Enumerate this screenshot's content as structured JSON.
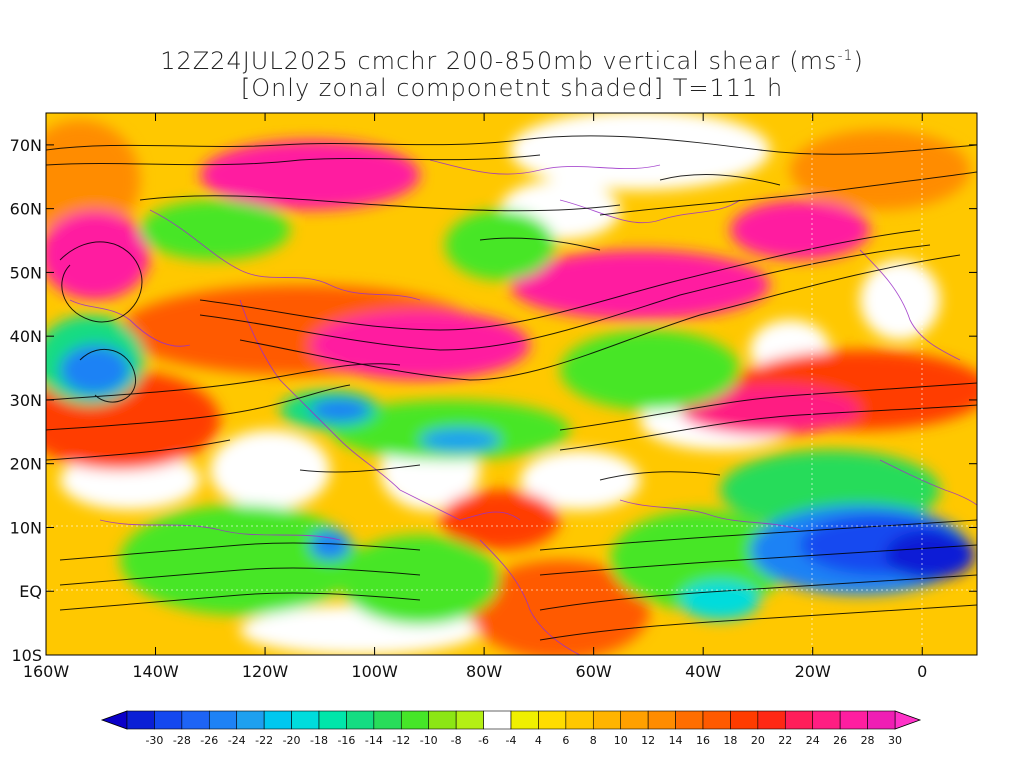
{
  "title": {
    "line1_prefix": "12Z24JUL2025 cmchr 200-850mb vertical shear (ms",
    "line1_sup": "-1",
    "line1_suffix": ")",
    "line2": "[Only zonal componetnt shaded] T=111 h"
  },
  "axes": {
    "lat_labels": [
      "70N",
      "60N",
      "50N",
      "40N",
      "30N",
      "20N",
      "10N",
      "EQ",
      "10S"
    ],
    "lat_values": [
      70,
      60,
      50,
      40,
      30,
      20,
      10,
      0,
      -10
    ],
    "lon_labels": [
      "160W",
      "140W",
      "120W",
      "100W",
      "80W",
      "60W",
      "40W",
      "20W",
      "0"
    ],
    "lon_values": [
      -160,
      -140,
      -120,
      -100,
      -80,
      -60,
      -40,
      -20,
      0
    ],
    "lon_range": [
      -160,
      10
    ],
    "lat_range": [
      -10,
      75
    ]
  },
  "colorbar": {
    "labels": [
      "-30",
      "-28",
      "-26",
      "-24",
      "-22",
      "-20",
      "-18",
      "-16",
      "-14",
      "-12",
      "-10",
      "-8",
      "-6",
      "-4",
      "4",
      "6",
      "8",
      "10",
      "12",
      "14",
      "16",
      "18",
      "20",
      "22",
      "24",
      "26",
      "28",
      "30"
    ],
    "colors": [
      "#0a1fd6",
      "#1448f0",
      "#1e64f5",
      "#1e82f5",
      "#1ea0f0",
      "#00c8f0",
      "#00dcdc",
      "#00e6aa",
      "#14dc82",
      "#28dc5a",
      "#46e628",
      "#8ce614",
      "#b4f014",
      "#ffffff",
      "#f0f000",
      "#ffdc00",
      "#ffc800",
      "#ffb400",
      "#ffa000",
      "#ff8c00",
      "#ff6e00",
      "#ff5a00",
      "#ff3c00",
      "#ff2814",
      "#ff1e5a",
      "#ff1e82",
      "#ff1ea0",
      "#f01eb4"
    ],
    "left_arrow_color": "#0a00c8",
    "right_arrow_color": "#ff32c8"
  },
  "colors": {
    "contour": "#9b30c8",
    "streamline": "#000000",
    "grid": "#ffffff",
    "frame": "#000000"
  }
}
